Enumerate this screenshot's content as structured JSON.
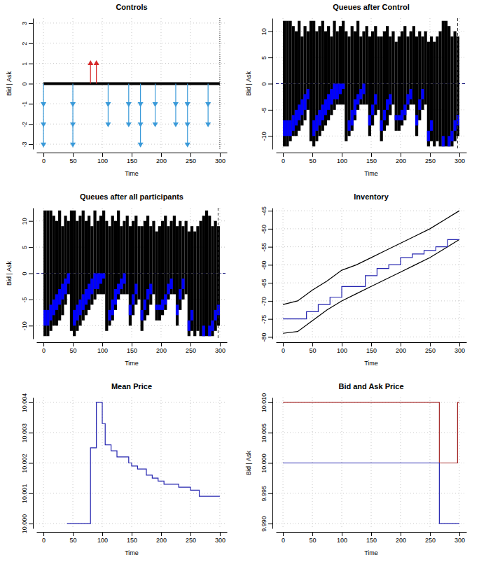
{
  "chart_data": [
    {
      "type": "controls",
      "title": "Controls",
      "x_label": "Time",
      "y_label": "Bid | Ask",
      "xlim": [
        -12,
        312
      ],
      "xticks": [
        0,
        50,
        100,
        150,
        200,
        250,
        300
      ],
      "ylim": [
        -3.24,
        3.24
      ],
      "yticks": [
        -3,
        -2,
        -1,
        0,
        1,
        2,
        3
      ],
      "grid": true,
      "vline": 300,
      "series": [
        {
          "type": "line",
          "color": "#000000",
          "x": [
            0,
            300
          ],
          "values": [
            0,
            0
          ]
        },
        {
          "type": "stem",
          "color": "#3a9ad9",
          "marker": "arrow",
          "x": [
            0,
            50,
            110,
            145,
            165,
            190,
            225,
            245,
            280
          ],
          "values": [
            -3,
            -3,
            -2,
            -2,
            -3,
            -2,
            -2,
            -3,
            -2
          ]
        },
        {
          "type": "stem",
          "color": "#d62728",
          "marker": "arrow",
          "x": [
            80,
            90
          ],
          "values": [
            1,
            1
          ]
        }
      ]
    },
    {
      "type": "bar",
      "title": "Queues after Control",
      "x_label": "Time",
      "y_label": "Bid | Ask",
      "xlim": [
        -12,
        312
      ],
      "xticks": [
        0,
        50,
        100,
        150,
        200,
        250,
        300
      ],
      "ylim": [
        -12.5,
        12.5
      ],
      "yticks": [
        -10,
        -5,
        0,
        5,
        10
      ],
      "grid": true,
      "vline": 297,
      "hline": 0,
      "x": [
        0,
        5,
        10,
        15,
        20,
        25,
        30,
        35,
        40,
        45,
        50,
        55,
        60,
        65,
        70,
        75,
        80,
        85,
        90,
        95,
        100,
        105,
        110,
        115,
        120,
        125,
        130,
        135,
        140,
        145,
        150,
        155,
        160,
        165,
        170,
        175,
        180,
        185,
        190,
        195,
        200,
        205,
        210,
        215,
        220,
        225,
        230,
        235,
        240,
        245,
        250,
        255,
        260,
        265,
        270,
        275,
        280,
        285,
        290,
        295
      ],
      "series": [
        {
          "color": "#000000",
          "values": [
            12,
            12,
            12,
            11,
            10,
            12,
            9,
            11,
            10,
            12,
            12,
            10,
            11,
            12,
            10,
            11,
            9,
            12,
            10,
            11,
            12,
            10,
            9,
            11,
            10,
            12,
            9,
            10,
            11,
            9,
            10,
            11,
            9,
            9,
            10,
            11,
            9,
            10,
            8,
            9,
            10,
            11,
            9,
            10,
            11,
            9,
            10,
            9,
            10,
            8,
            9,
            8,
            9,
            10,
            12,
            12,
            11,
            9,
            10,
            9
          ]
        },
        {
          "color": "#000000",
          "values": [
            -12,
            -12,
            -11,
            -10,
            -10,
            -9,
            -8,
            -7,
            -5,
            -11,
            -12,
            -11,
            -10,
            -9,
            -8,
            -7,
            -6,
            -5,
            -4,
            -4,
            -4,
            -11,
            -10,
            -9,
            -7,
            -5,
            -4,
            -4,
            -4,
            -10,
            -8,
            -6,
            -5,
            -11,
            -9,
            -8,
            -6,
            -4,
            -9,
            -9,
            -8,
            -7,
            -5,
            -4,
            -4,
            -10,
            -7,
            -5,
            -4,
            -12,
            -11,
            -12,
            -11,
            -12,
            -12,
            -12,
            -12,
            -12,
            -11,
            -10
          ]
        },
        {
          "color": "#0000ff",
          "values": [
            -7,
            -7,
            -7,
            -6,
            -5,
            -4,
            -3,
            -2,
            -1,
            null,
            -7,
            -6,
            -5,
            -4,
            -3,
            -2,
            -1,
            0,
            0,
            0,
            0,
            null,
            -7,
            -5,
            -3,
            -2,
            -1,
            0,
            null,
            -6,
            -4,
            -2,
            null,
            -7,
            -5,
            -3,
            -2,
            null,
            -6,
            -6,
            -5,
            -4,
            -2,
            -1,
            null,
            -6,
            -3,
            -1,
            null,
            -9,
            -7,
            null,
            null,
            null,
            -10,
            null,
            -10,
            -9,
            -7,
            -6
          ],
          "low": [
            -10,
            -10,
            -10,
            -9,
            -8,
            -7,
            -6,
            -5,
            -3,
            null,
            -10,
            -9,
            -8,
            -7,
            -6,
            -5,
            -4,
            -3,
            -3,
            -2,
            -1,
            null,
            -9,
            -8,
            -6,
            -4,
            -3,
            -2,
            null,
            -8,
            -6,
            -4,
            null,
            -9,
            -7,
            -5,
            -4,
            null,
            -7,
            -7,
            -7,
            -6,
            -4,
            -3,
            null,
            -8,
            -5,
            -3,
            null,
            -11,
            -9,
            null,
            null,
            null,
            -12,
            null,
            -12,
            -11,
            -9,
            -8
          ]
        }
      ]
    },
    {
      "type": "bar",
      "title": "Queues after all participants",
      "x_label": "Time",
      "y_label": "Bid | Ask",
      "xlim": [
        -12,
        312
      ],
      "xticks": [
        0,
        50,
        100,
        150,
        200,
        250,
        300
      ],
      "ylim": [
        -12.5,
        12.5
      ],
      "yticks": [
        -10,
        -5,
        0,
        5,
        10
      ],
      "grid": true,
      "vline": 297,
      "hline": 0,
      "x": [
        0,
        5,
        10,
        15,
        20,
        25,
        30,
        35,
        40,
        45,
        50,
        55,
        60,
        65,
        70,
        75,
        80,
        85,
        90,
        95,
        100,
        105,
        110,
        115,
        120,
        125,
        130,
        135,
        140,
        145,
        150,
        155,
        160,
        165,
        170,
        175,
        180,
        185,
        190,
        195,
        200,
        205,
        210,
        215,
        220,
        225,
        230,
        235,
        240,
        245,
        250,
        255,
        260,
        265,
        270,
        275,
        280,
        285,
        290,
        295
      ],
      "series": [
        {
          "color": "#000000",
          "values": [
            12,
            12,
            12,
            11,
            10,
            12,
            9,
            11,
            10,
            12,
            12,
            10,
            11,
            12,
            10,
            11,
            9,
            12,
            10,
            11,
            12,
            10,
            9,
            11,
            10,
            12,
            9,
            10,
            11,
            9,
            10,
            11,
            9,
            9,
            10,
            11,
            9,
            10,
            8,
            9,
            10,
            11,
            9,
            10,
            11,
            9,
            10,
            9,
            10,
            8,
            9,
            8,
            9,
            10,
            11,
            12,
            11,
            9,
            10,
            9
          ]
        },
        {
          "color": "#000000",
          "values": [
            -12,
            -12,
            -11,
            -10,
            -10,
            -9,
            -8,
            -6,
            -4,
            -11,
            -12,
            -11,
            -10,
            -9,
            -8,
            -7,
            -6,
            -5,
            -4,
            -4,
            -4,
            -11,
            -10,
            -9,
            -7,
            -5,
            -4,
            -4,
            -4,
            -10,
            -8,
            -6,
            -5,
            -11,
            -9,
            -8,
            -6,
            -4,
            -9,
            -9,
            -8,
            -7,
            -5,
            -4,
            -4,
            -10,
            -7,
            -5,
            -4,
            -12,
            -11,
            -12,
            -11,
            -12,
            -12,
            -12,
            -12,
            -12,
            -11,
            -10
          ]
        },
        {
          "color": "#0000ff",
          "values": [
            -7,
            -7,
            -6,
            -5,
            -4,
            -3,
            -2,
            -1,
            0,
            null,
            -7,
            -6,
            -5,
            -4,
            -3,
            -2,
            -1,
            0,
            0,
            0,
            0,
            null,
            -7,
            -5,
            -3,
            -2,
            -1,
            0,
            null,
            -6,
            -4,
            -2,
            null,
            -7,
            -5,
            -3,
            -2,
            null,
            -6,
            -6,
            -5,
            -4,
            -2,
            -1,
            null,
            -6,
            -3,
            -1,
            null,
            -9,
            -7,
            null,
            null,
            null,
            -10,
            null,
            -10,
            -9,
            -7,
            -6
          ],
          "low": [
            -10,
            -10,
            -9,
            -8,
            -7,
            -6,
            -5,
            -4,
            -2,
            null,
            -10,
            -9,
            -8,
            -7,
            -6,
            -5,
            -4,
            -3,
            -3,
            -2,
            -1,
            null,
            -9,
            -8,
            -6,
            -4,
            -3,
            -2,
            null,
            -8,
            -6,
            -4,
            null,
            -9,
            -7,
            -5,
            -4,
            null,
            -7,
            -7,
            -7,
            -6,
            -4,
            -3,
            null,
            -8,
            -5,
            -3,
            null,
            -11,
            -9,
            null,
            null,
            null,
            -12,
            null,
            -12,
            -11,
            -9,
            -8
          ]
        }
      ]
    },
    {
      "type": "line",
      "title": "Inventory",
      "x_label": "Time",
      "xlim": [
        -12,
        312
      ],
      "xticks": [
        0,
        50,
        100,
        150,
        200,
        250,
        300
      ],
      "ylim": [
        -80.5,
        -44.2
      ],
      "yticks": [
        -80,
        -75,
        -70,
        -65,
        -60,
        -55,
        -50,
        -45
      ],
      "grid": true,
      "series": [
        {
          "type": "line",
          "color": "#000000",
          "x": [
            0,
            25,
            50,
            75,
            100,
            125,
            150,
            175,
            200,
            225,
            250,
            275,
            300
          ],
          "values": [
            -71,
            -70,
            -67,
            -64.5,
            -61.5,
            -60,
            -58,
            -56,
            -54,
            -52,
            -50,
            -47.5,
            -45
          ]
        },
        {
          "type": "line",
          "color": "#000000",
          "x": [
            0,
            25,
            50,
            75,
            100,
            125,
            150,
            175,
            200,
            225,
            250,
            275,
            300
          ],
          "values": [
            -79,
            -78.5,
            -75.5,
            -72.5,
            -70,
            -68,
            -66,
            -64,
            -62,
            -60,
            -58,
            -55.5,
            -53
          ]
        },
        {
          "type": "step",
          "color": "#2626b0",
          "x": [
            0,
            25,
            40,
            60,
            80,
            100,
            120,
            140,
            160,
            180,
            200,
            220,
            240,
            260,
            280,
            300
          ],
          "values": [
            -75,
            -75,
            -73,
            -71,
            -69,
            -66,
            -66,
            -63,
            -61,
            -60,
            -58,
            -57,
            -56,
            -55,
            -53,
            -53
          ]
        }
      ]
    },
    {
      "type": "step",
      "title": "Mean Price",
      "x_label": "Time",
      "xlim": [
        -12,
        312
      ],
      "xticks": [
        0,
        50,
        100,
        150,
        200,
        250,
        300
      ],
      "ylim": [
        9.99984,
        10.00416
      ],
      "yticks": [
        {
          "value": 10,
          "label": "10.000"
        },
        {
          "value": 10.001,
          "label": "10.001"
        },
        {
          "value": 10.002,
          "label": "10.002"
        },
        {
          "value": 10.003,
          "label": "10.003"
        },
        {
          "value": 10.004,
          "label": "10.004"
        }
      ],
      "grid": true,
      "series": [
        {
          "color": "#2626b0",
          "x": [
            40,
            80,
            90,
            100,
            105,
            115,
            125,
            145,
            150,
            160,
            175,
            185,
            195,
            205,
            230,
            250,
            265,
            300
          ],
          "values": [
            10.0,
            10.0025,
            10.004,
            10.0033,
            10.0026,
            10.0024,
            10.0022,
            10.002,
            10.0019,
            10.0018,
            10.0016,
            10.0015,
            10.0014,
            10.0013,
            10.0012,
            10.0011,
            10.0009,
            10.0009
          ]
        }
      ]
    },
    {
      "type": "step",
      "title": "Bid and Ask Price",
      "x_label": "Time",
      "y_label": "Bid | Ask",
      "xlim": [
        -12,
        312
      ],
      "xticks": [
        0,
        50,
        100,
        150,
        200,
        250,
        300
      ],
      "ylim": [
        9.9892,
        10.0108
      ],
      "yticks": [
        {
          "value": 9.99,
          "label": "9.990"
        },
        {
          "value": 9.995,
          "label": "9.995"
        },
        {
          "value": 10,
          "label": "10.000"
        },
        {
          "value": 10.005,
          "label": "10.005"
        },
        {
          "value": 10.01,
          "label": "10.010"
        }
      ],
      "grid": true,
      "series": [
        {
          "color": "#a52a2a",
          "x": [
            0,
            266,
            297,
            300
          ],
          "values": [
            10.01,
            10.0,
            10.01,
            10.01
          ]
        },
        {
          "color": "#2626b0",
          "x": [
            0,
            266,
            300
          ],
          "values": [
            10.0,
            9.99,
            9.99
          ]
        }
      ]
    }
  ]
}
